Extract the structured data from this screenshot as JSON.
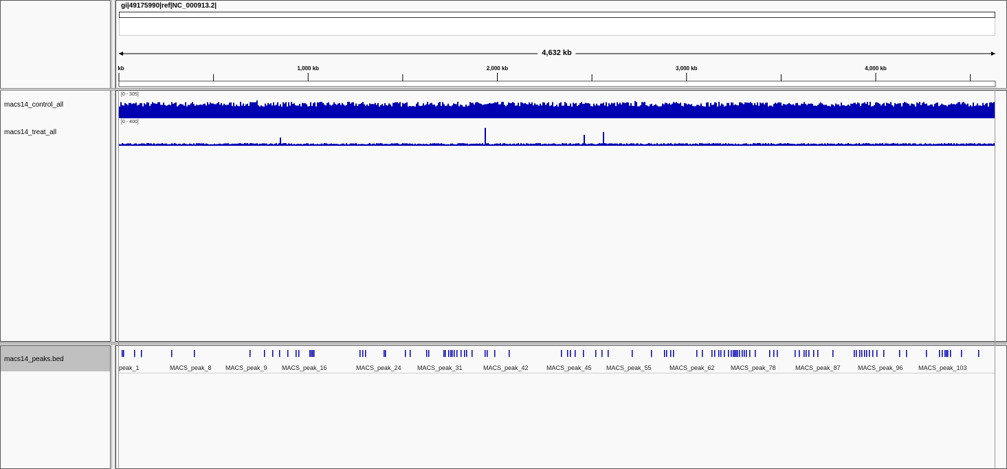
{
  "header": {
    "locus": "gi|49175990|ref|NC_000913.2|",
    "span_label": "4,632 kb",
    "ruler_ticks": [
      {
        "label": "kb",
        "pos": 0
      },
      {
        "label": "1,000 kb",
        "pos": 1000
      },
      {
        "label": "2,000 kb",
        "pos": 2000
      },
      {
        "label": "3,000 kb",
        "pos": 3000
      },
      {
        "label": "4,000 kb",
        "pos": 4000
      }
    ],
    "minor_ticks_kb": [
      500,
      1500,
      2500,
      3500,
      4500
    ],
    "genome_length_kb": 4632
  },
  "data_tracks": [
    {
      "name": "macs14_control_all",
      "range": "[0 - 305]",
      "color": "#0000b3"
    },
    {
      "name": "macs14_treat_all",
      "range": "[0 - 400]",
      "color": "#0000b3"
    }
  ],
  "feature_track": {
    "name": "macs14_peaks.bed",
    "color": "#0000b3",
    "labels": [
      "peak_1",
      "MACS_peak_8",
      "MACS_peak_9",
      "MACS_peak_16",
      "MACS_peak_24",
      "MACS_peak_31",
      "MACS_peak_42",
      "MACS_peak_45",
      "MACS_peak_55",
      "MACS_peak_62",
      "MACS_peak_78",
      "MACS_peak_87",
      "MACS_peak_96",
      "MACS_peak_103"
    ]
  }
}
